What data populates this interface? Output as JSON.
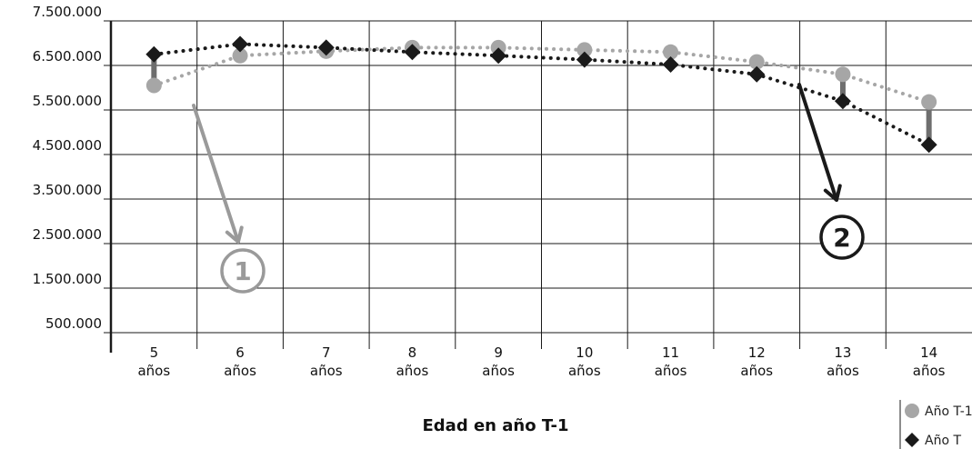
{
  "chart_data": {
    "type": "line",
    "title": "",
    "xlabel": "Edad en año T-1",
    "ylabel": "",
    "ylim": [
      500000,
      7500000
    ],
    "y_ticks": [
      "7.500.000",
      "6.500.000",
      "5.500.000",
      "4.500.000",
      "3.500.000",
      "2.500.000",
      "1.500.000",
      "500.000"
    ],
    "y_tick_values": [
      7500000,
      6500000,
      5500000,
      4500000,
      3500000,
      2500000,
      1500000,
      500000
    ],
    "categories": [
      {
        "num": "5",
        "unit": "años"
      },
      {
        "num": "6",
        "unit": "años"
      },
      {
        "num": "7",
        "unit": "años"
      },
      {
        "num": "8",
        "unit": "años"
      },
      {
        "num": "9",
        "unit": "años"
      },
      {
        "num": "10",
        "unit": "años"
      },
      {
        "num": "11",
        "unit": "años"
      },
      {
        "num": "12",
        "unit": "años"
      },
      {
        "num": "13",
        "unit": "años"
      },
      {
        "num": "14",
        "unit": "años"
      }
    ],
    "series": [
      {
        "name": "Año T-1",
        "marker": "circle",
        "color": "#a6a6a6",
        "values": [
          6050000,
          6720000,
          6820000,
          6900000,
          6900000,
          6850000,
          6800000,
          6580000,
          6300000,
          5680000
        ]
      },
      {
        "name": "Año T",
        "marker": "diamond",
        "color": "#1a1a1a",
        "values": [
          6750000,
          6980000,
          6900000,
          6800000,
          6720000,
          6630000,
          6520000,
          6300000,
          5700000,
          4720000
        ]
      }
    ],
    "annotations": [
      {
        "label": "1",
        "color": "#9a9a9a"
      },
      {
        "label": "2",
        "color": "#1a1a1a"
      }
    ],
    "legend_position": "bottom-right",
    "grid": true
  }
}
